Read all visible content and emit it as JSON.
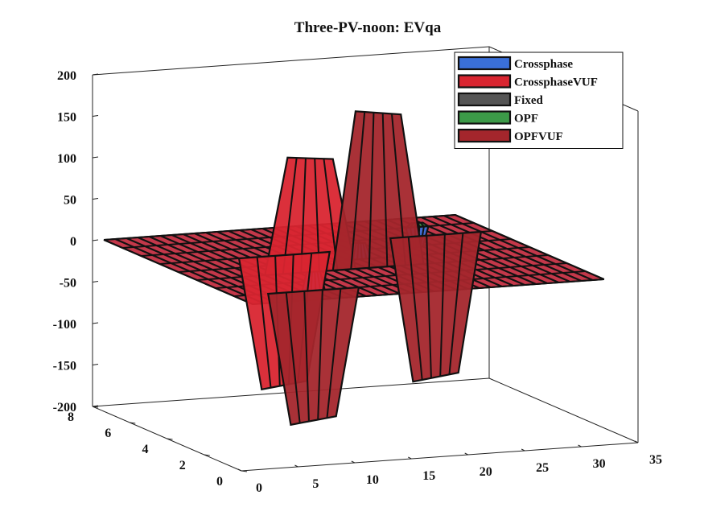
{
  "chart_data": {
    "type": "surface3d",
    "title": "Three-PV-noon: EVqa",
    "xlabel": "",
    "ylabel": "",
    "zlabel": "",
    "xlim": [
      0,
      35
    ],
    "ylim": [
      0,
      8
    ],
    "zlim": [
      -200,
      200
    ],
    "x_ticks": [
      "0",
      "5",
      "10",
      "15",
      "20",
      "25",
      "30",
      "35"
    ],
    "y_ticks": [
      "0",
      "2",
      "4",
      "6",
      "8"
    ],
    "z_ticks": [
      "200",
      "150",
      "100",
      "50",
      "0",
      "-50",
      "-100",
      "-150",
      "-200"
    ],
    "grid": false,
    "legend_position": "top-right",
    "series": [
      {
        "name": "Crossphase",
        "color": "#3a6fd8",
        "points": [
          [
            8,
            1,
            28
          ],
          [
            17,
            4,
            20
          ],
          [
            27,
            7,
            -25
          ]
        ]
      },
      {
        "name": "CrossphaseVUF",
        "color": "#d92530",
        "points": [
          [
            11,
            3,
            140
          ],
          [
            12,
            5,
            -160
          ]
        ]
      },
      {
        "name": "Fixed",
        "color": "#555555",
        "points": []
      },
      {
        "name": "OPF",
        "color": "#3c9a48",
        "points": [
          [
            22,
            5,
            8
          ],
          [
            27,
            7,
            5
          ]
        ]
      },
      {
        "name": "OPFVUF",
        "color": "#a4262c",
        "points": [
          [
            17,
            3,
            190
          ],
          [
            8,
            1,
            -160
          ],
          [
            27,
            6,
            -175
          ]
        ]
      }
    ]
  }
}
